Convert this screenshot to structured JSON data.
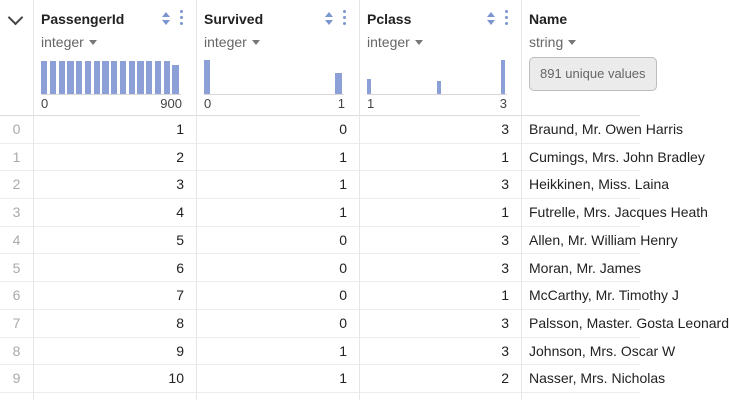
{
  "columns": [
    {
      "name": "PassengerId",
      "type": "integer",
      "axis_min": "0",
      "axis_max": "900",
      "histogram": [
        0.98,
        0.98,
        0.98,
        0.98,
        0.98,
        0.98,
        0.98,
        0.98,
        0.98,
        0.98,
        0.98,
        0.98,
        0.98,
        0.98,
        0.98,
        0.86
      ]
    },
    {
      "name": "Survived",
      "type": "integer",
      "axis_min": "0",
      "axis_max": "1",
      "histogram": [
        1,
        0,
        0,
        0,
        0,
        0,
        0,
        0,
        0,
        0,
        0,
        0,
        0,
        0,
        0,
        0.62
      ]
    },
    {
      "name": "Pclass",
      "type": "integer",
      "axis_min": "1",
      "axis_max": "3",
      "histogram": [
        0.44,
        0,
        0,
        0,
        0,
        0,
        0,
        0,
        0,
        0,
        0,
        0.37,
        0,
        0,
        0,
        0,
        0,
        0,
        0,
        0,
        0,
        1
      ]
    },
    {
      "name": "Name",
      "type": "string",
      "unique_label": "891 unique values"
    }
  ],
  "rows": [
    {
      "index": "0",
      "PassengerId": "1",
      "Survived": "0",
      "Pclass": "3",
      "Name": "Braund, Mr. Owen Harris"
    },
    {
      "index": "1",
      "PassengerId": "2",
      "Survived": "1",
      "Pclass": "1",
      "Name": "Cumings, Mrs. John Bradley"
    },
    {
      "index": "2",
      "PassengerId": "3",
      "Survived": "1",
      "Pclass": "3",
      "Name": "Heikkinen, Miss. Laina"
    },
    {
      "index": "3",
      "PassengerId": "4",
      "Survived": "1",
      "Pclass": "1",
      "Name": "Futrelle, Mrs. Jacques Heath"
    },
    {
      "index": "4",
      "PassengerId": "5",
      "Survived": "0",
      "Pclass": "3",
      "Name": "Allen, Mr. William Henry"
    },
    {
      "index": "5",
      "PassengerId": "6",
      "Survived": "0",
      "Pclass": "3",
      "Name": "Moran, Mr. James"
    },
    {
      "index": "6",
      "PassengerId": "7",
      "Survived": "0",
      "Pclass": "1",
      "Name": "McCarthy, Mr. Timothy J"
    },
    {
      "index": "7",
      "PassengerId": "8",
      "Survived": "0",
      "Pclass": "3",
      "Name": "Palsson, Master. Gosta Leonard"
    },
    {
      "index": "8",
      "PassengerId": "9",
      "Survived": "1",
      "Pclass": "3",
      "Name": "Johnson, Mrs. Oscar W"
    },
    {
      "index": "9",
      "PassengerId": "10",
      "Survived": "1",
      "Pclass": "2",
      "Name": "Nasser, Mrs. Nicholas"
    }
  ],
  "colors": {
    "accent": "#7b96cf",
    "bar": "#8c9fd6"
  }
}
